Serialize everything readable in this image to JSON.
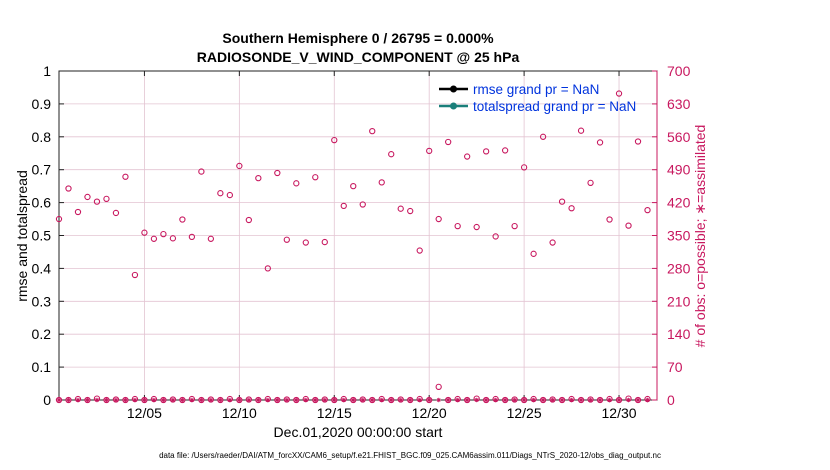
{
  "colors": {
    "primary": "#000000",
    "secondary": "#c8185f",
    "legend_text": "#0033dd",
    "rmse": "#000000",
    "spread": "#1a7f7a",
    "grid": "#e3c4d2"
  },
  "chart_data": {
    "type": "scatter",
    "title_line1": "Southern Hemisphere 0 / 26795 = 0.000%",
    "title_line2": "RADIOSONDE_V_WIND_COMPONENT @ 25 hPa",
    "xlabel": "Dec.01,2020 00:00:00 start",
    "ylabel_left": "rmse and totalspread",
    "ylabel_right": "# of obs: o=possible; ∗=assimilated",
    "xlim": [
      0.5,
      32.0
    ],
    "x_ticks": [
      5,
      10,
      15,
      20,
      25,
      30
    ],
    "x_tick_labels": [
      "12/05",
      "12/10",
      "12/15",
      "12/20",
      "12/25",
      "12/30"
    ],
    "ylim_left": [
      0,
      1
    ],
    "y_ticks_left": [
      0,
      0.1,
      0.2,
      0.3,
      0.4,
      0.5,
      0.6,
      0.7,
      0.8,
      0.9,
      1
    ],
    "y_tick_labels_left": [
      "0",
      "0.1",
      "0.2",
      "0.3",
      "0.4",
      "0.5",
      "0.6",
      "0.7",
      "0.8",
      "0.9",
      "1"
    ],
    "ylim_right": [
      0,
      700
    ],
    "y_ticks_right": [
      0,
      70,
      140,
      210,
      280,
      350,
      420,
      490,
      560,
      630,
      700
    ],
    "y_tick_labels_right": [
      "0",
      "70",
      "140",
      "210",
      "280",
      "350",
      "420",
      "490",
      "560",
      "630",
      "700"
    ],
    "legend": [
      {
        "name": "rmse grand pr = NaN",
        "color": "#000000"
      },
      {
        "name": "totalspread grand pr = NaN",
        "color": "#1a7f7a"
      }
    ],
    "series": [
      {
        "name": "possible (high)",
        "marker": "o",
        "x": [
          0.5,
          1.0,
          1.5,
          2.0,
          2.5,
          3.0,
          3.5,
          4.0,
          4.5,
          5.0,
          5.5,
          6.0,
          6.5,
          7.0,
          7.5,
          8.0,
          8.5,
          9.0,
          9.5,
          10.0,
          10.5,
          11.0,
          11.5,
          12.0,
          12.5,
          13.0,
          13.5,
          14.0,
          14.5,
          15.0,
          15.5,
          16.0,
          16.5,
          17.0,
          17.5,
          18.0,
          18.5,
          19.0,
          19.5,
          20.0,
          20.5,
          21.0,
          21.5,
          22.0,
          22.5,
          23.0,
          23.5,
          24.0,
          24.5,
          25.0,
          25.5,
          26.0,
          26.5,
          27.0,
          27.5,
          28.0,
          28.5,
          29.0,
          29.5,
          30.0,
          30.5,
          31.0,
          31.5
        ],
        "values": [
          385,
          450,
          400,
          432,
          422,
          428,
          398,
          475,
          266,
          356,
          343,
          353,
          344,
          384,
          347,
          486,
          343,
          440,
          436,
          498,
          383,
          472,
          280,
          483,
          341,
          461,
          335,
          474,
          336,
          553,
          413,
          455,
          416,
          572,
          463,
          523,
          407,
          402,
          318,
          530,
          385,
          549,
          370,
          518,
          368,
          529,
          348,
          531,
          370,
          495,
          311,
          560,
          335,
          422,
          408,
          573,
          462,
          548,
          384,
          652,
          371,
          550,
          404
        ],
        "colors": [
          "#c8185f"
        ]
      },
      {
        "name": "possible (low)",
        "marker": "o",
        "x": [
          0.5,
          1.0,
          1.5,
          2.0,
          2.5,
          3.0,
          3.5,
          4.0,
          4.5,
          5.0,
          5.5,
          6.0,
          6.5,
          7.0,
          7.5,
          8.0,
          8.5,
          9.0,
          9.5,
          10.0,
          10.5,
          11.0,
          11.5,
          12.0,
          12.5,
          13.0,
          13.5,
          14.0,
          14.5,
          15.0,
          15.5,
          16.0,
          16.5,
          17.0,
          17.5,
          18.0,
          18.5,
          19.0,
          19.5,
          20.0,
          20.5,
          21.0,
          21.5,
          22.0,
          22.5,
          23.0,
          23.5,
          24.0,
          24.5,
          25.0,
          25.5,
          26.0,
          26.5,
          27.0,
          27.5,
          28.0,
          28.5,
          29.0,
          29.5,
          30.0,
          30.5,
          31.0,
          31.5
        ],
        "values": [
          0,
          0,
          2,
          0,
          3,
          0,
          1,
          0,
          2,
          0,
          2,
          0,
          1,
          0,
          2,
          0,
          1,
          0,
          2,
          0,
          1,
          0,
          2,
          0,
          1,
          0,
          2,
          0,
          1,
          0,
          2,
          0,
          1,
          0,
          2,
          0,
          1,
          0,
          2,
          0,
          28,
          0,
          2,
          0,
          3,
          0,
          2,
          0,
          1,
          0,
          2,
          0,
          1,
          0,
          2,
          0,
          1,
          0,
          2,
          0,
          3,
          0,
          2
        ],
        "colors": [
          "#c8185f"
        ]
      },
      {
        "name": "assimilated",
        "marker": "*",
        "x": [
          0.5,
          1.0,
          1.5,
          2.0,
          2.5,
          3.0,
          3.5,
          4.0,
          4.5,
          5.0,
          5.5,
          6.0,
          6.5,
          7.0,
          7.5,
          8.0,
          8.5,
          9.0,
          9.5,
          10.0,
          10.5,
          11.0,
          11.5,
          12.0,
          12.5,
          13.0,
          13.5,
          14.0,
          14.5,
          15.0,
          15.5,
          16.0,
          16.5,
          17.0,
          17.5,
          18.0,
          18.5,
          19.0,
          19.5,
          20.0,
          20.5,
          21.0,
          21.5,
          22.0,
          22.5,
          23.0,
          23.5,
          24.0,
          24.5,
          25.0,
          25.5,
          26.0,
          26.5,
          27.0,
          27.5,
          28.0,
          28.5,
          29.0,
          29.5,
          30.0,
          30.5,
          31.0,
          31.5
        ],
        "values": [
          0,
          0,
          0,
          0,
          0,
          0,
          0,
          0,
          0,
          0,
          0,
          0,
          0,
          0,
          0,
          0,
          0,
          0,
          0,
          0,
          0,
          0,
          0,
          0,
          0,
          0,
          0,
          0,
          0,
          0,
          0,
          0,
          0,
          0,
          0,
          0,
          0,
          0,
          0,
          0,
          0,
          0,
          0,
          0,
          0,
          0,
          0,
          0,
          0,
          0,
          0,
          0,
          0,
          0,
          0,
          0,
          0,
          0,
          0,
          0,
          0,
          0,
          0
        ]
      }
    ]
  },
  "footer": "data file: /Users/raeder/DAI/ATM_forcXX/CAM6_setup/f.e21.FHIST_BGC.f09_025.CAM6assim.011/Diags_NTrS_2020-12/obs_diag_output.nc"
}
